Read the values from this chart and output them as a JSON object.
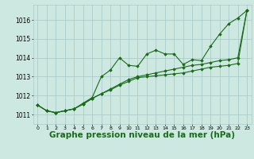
{
  "background_color": "#cce8e0",
  "grid_color": "#aacccc",
  "line_color": "#1a6b1a",
  "xlabel": "Graphe pression niveau de la mer (hPa)",
  "xlabel_fontsize": 7.5,
  "xlim": [
    -0.5,
    23.5
  ],
  "ylim": [
    1010.5,
    1016.8
  ],
  "yticks": [
    1011,
    1012,
    1013,
    1014,
    1015,
    1016
  ],
  "xticks": [
    0,
    1,
    2,
    3,
    4,
    5,
    6,
    7,
    8,
    9,
    10,
    11,
    12,
    13,
    14,
    15,
    16,
    17,
    18,
    19,
    20,
    21,
    22,
    23
  ],
  "series": [
    [
      1011.5,
      1011.2,
      1011.1,
      1011.2,
      1011.3,
      1011.6,
      1011.9,
      1013.0,
      1013.35,
      1014.0,
      1013.6,
      1013.55,
      1014.2,
      1014.4,
      1014.2,
      1014.2,
      1013.65,
      1013.9,
      1013.85,
      1014.6,
      1015.25,
      1015.8,
      1016.1,
      1016.5
    ],
    [
      1011.5,
      1011.2,
      1011.1,
      1011.2,
      1011.3,
      1011.55,
      1011.85,
      1012.1,
      1012.35,
      1012.6,
      1012.85,
      1013.0,
      1013.1,
      1013.2,
      1013.3,
      1013.4,
      1013.5,
      1013.6,
      1013.65,
      1013.75,
      1013.85,
      1013.9,
      1014.0,
      1016.5
    ],
    [
      1011.5,
      1011.2,
      1011.1,
      1011.2,
      1011.3,
      1011.55,
      1011.85,
      1012.1,
      1012.3,
      1012.55,
      1012.75,
      1012.95,
      1013.0,
      1013.05,
      1013.1,
      1013.15,
      1013.2,
      1013.3,
      1013.4,
      1013.5,
      1013.55,
      1013.6,
      1013.7,
      1016.5
    ]
  ]
}
